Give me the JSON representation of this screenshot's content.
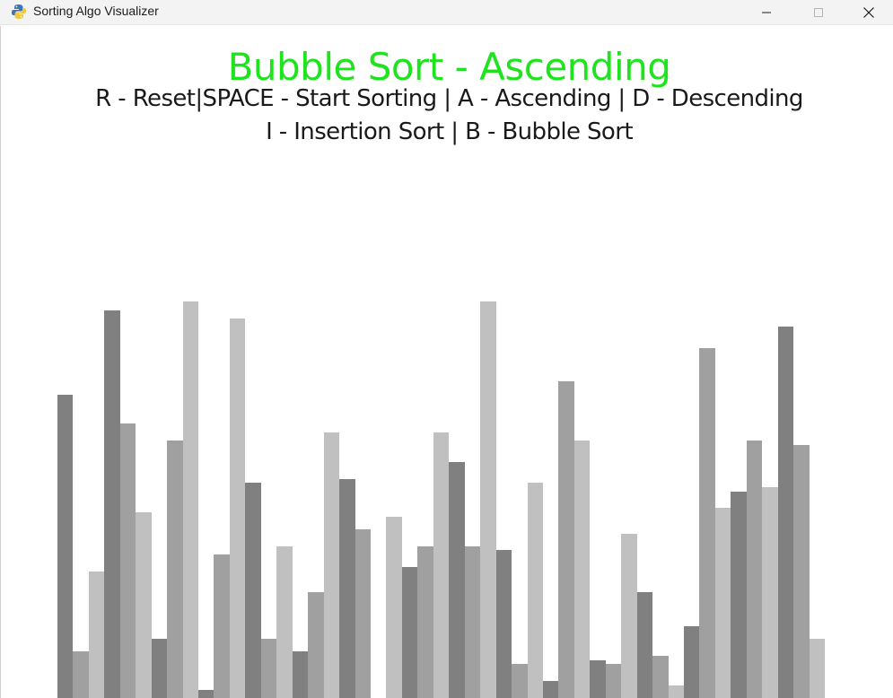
{
  "window": {
    "title": "Sorting Algo Visualizer",
    "icon": "python-icon"
  },
  "header": {
    "title": "Bubble Sort - Ascending",
    "controls_line1": "R - Reset|SPACE - Start Sorting | A - Ascending | D - Descending",
    "controls_line2": "I - Insertion Sort | B - Bubble Sort"
  },
  "colors": {
    "title": "#1ee31e",
    "bar_shades": [
      "#808080",
      "#a0a0a0",
      "#c0c0c0"
    ]
  },
  "list": {
    "values": [
      72,
      11,
      30,
      92,
      65,
      44,
      14,
      61,
      94,
      2,
      34,
      90,
      51,
      14,
      36,
      11,
      25,
      63,
      52,
      40,
      43,
      31,
      36,
      63,
      56,
      36,
      94,
      35,
      8,
      51,
      4,
      75,
      61,
      9,
      8,
      39,
      25,
      10,
      3,
      17,
      83,
      45,
      49,
      61,
      50,
      88,
      60,
      14
    ],
    "gaps_after_index": [
      19
    ],
    "max_value": 100
  }
}
